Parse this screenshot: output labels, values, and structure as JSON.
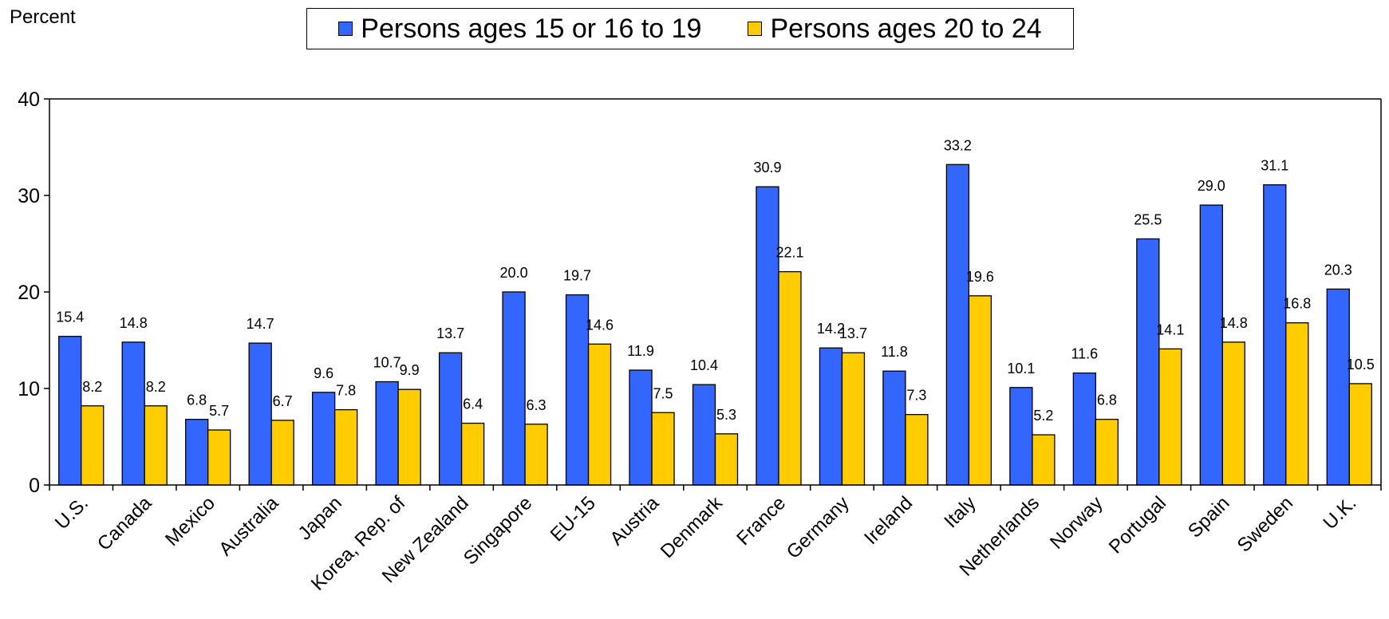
{
  "chart_data": {
    "type": "bar",
    "ylabel": "Percent",
    "ylim": [
      0,
      40
    ],
    "yticks": [
      0,
      10,
      20,
      30,
      40
    ],
    "grid": false,
    "legend_position": "top-center",
    "categories": [
      "U.S.",
      "Canada",
      "Mexico",
      "Australia",
      "Japan",
      "Korea, Rep. of",
      "New Zealand",
      "Singapore",
      "EU-15",
      "Austria",
      "Denmark",
      "France",
      "Germany",
      "Ireland",
      "Italy",
      "Netherlands",
      "Norway",
      "Portugal",
      "Spain",
      "Sweden",
      "U.K."
    ],
    "series": [
      {
        "name": "Persons ages 15 or 16 to 19",
        "color": "#3366ff",
        "values": [
          15.4,
          14.8,
          6.8,
          14.7,
          9.6,
          10.7,
          13.7,
          20.0,
          19.7,
          11.9,
          10.4,
          30.9,
          14.2,
          11.8,
          33.2,
          10.1,
          11.6,
          25.5,
          29.0,
          31.1,
          20.3
        ]
      },
      {
        "name": "Persons ages 20 to 24",
        "color": "#ffcc00",
        "values": [
          8.2,
          8.2,
          5.7,
          6.7,
          7.8,
          9.9,
          6.4,
          6.3,
          14.6,
          7.5,
          5.3,
          22.1,
          13.7,
          7.3,
          19.6,
          5.2,
          6.8,
          14.1,
          14.8,
          16.8,
          10.5
        ]
      }
    ],
    "data_labels": [
      [
        "15.4",
        "14.8",
        "6.8",
        "14.7",
        "9.6",
        "10.7",
        "13.7",
        "20.0",
        "19.7",
        "11.9",
        "10.4",
        "30.9",
        "14.2",
        "11.8",
        "33.2",
        "10.1",
        "11.6",
        "25.5",
        "29.0",
        "31.1",
        "20.3"
      ],
      [
        "8.2",
        "8.2",
        "5.7",
        "6.7",
        "7.8",
        "9.9",
        "6.4",
        "6.3",
        "14.6",
        "7.5",
        "5.3",
        "22.1",
        "13.7",
        "7.3",
        "19.6",
        "5.2",
        "6.8",
        "14.1",
        "14.8",
        "16.8",
        "10.5"
      ]
    ]
  }
}
